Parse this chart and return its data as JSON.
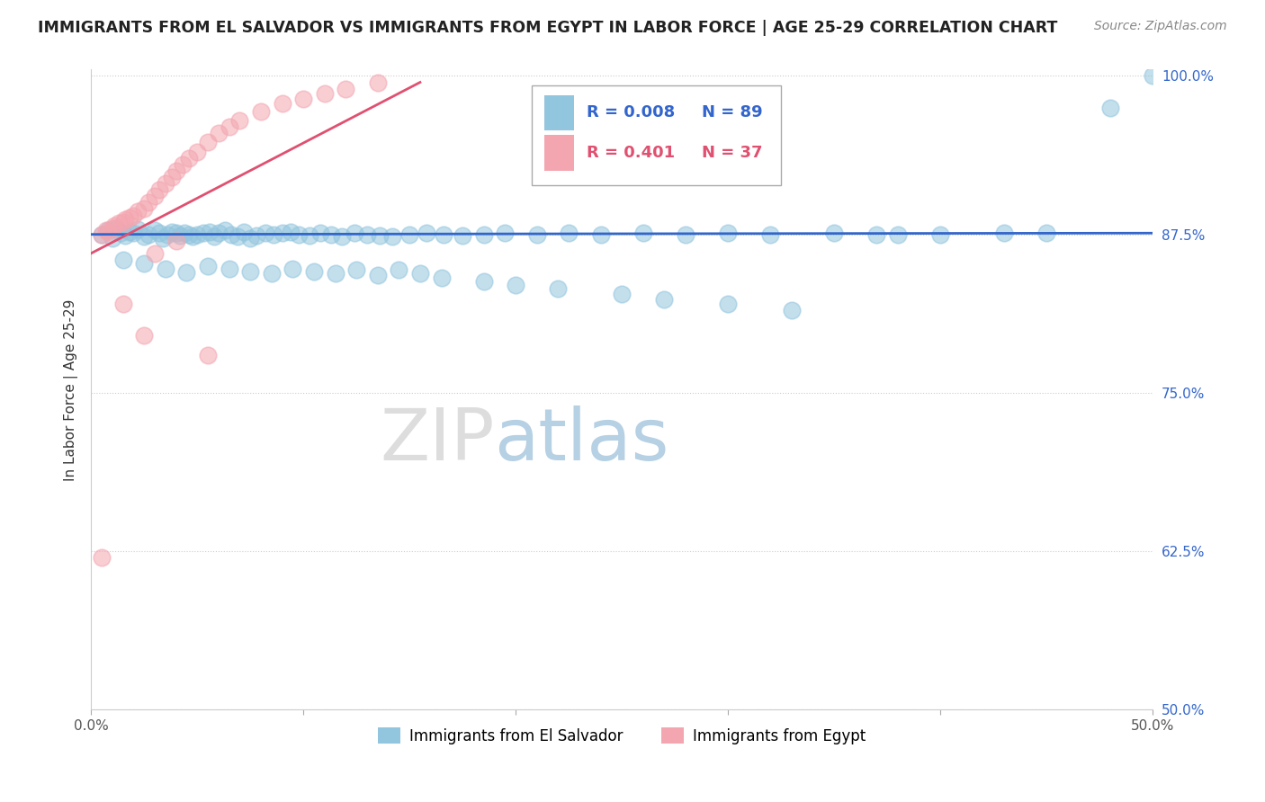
{
  "title": "IMMIGRANTS FROM EL SALVADOR VS IMMIGRANTS FROM EGYPT IN LABOR FORCE | AGE 25-29 CORRELATION CHART",
  "source": "Source: ZipAtlas.com",
  "ylabel": "In Labor Force | Age 25-29",
  "xlim": [
    0.0,
    0.5
  ],
  "ylim": [
    0.5,
    1.005
  ],
  "xticks": [
    0.0,
    0.1,
    0.2,
    0.3,
    0.4,
    0.5
  ],
  "xticklabels": [
    "0.0%",
    "",
    "",
    "",
    "",
    "50.0%"
  ],
  "yticks": [
    0.5,
    0.625,
    0.75,
    0.875,
    1.0
  ],
  "yticklabels": [
    "50.0%",
    "62.5%",
    "75.0%",
    "87.5%",
    "100.0%"
  ],
  "legend_r_blue": "R = 0.008",
  "legend_n_blue": "N = 89",
  "legend_r_pink": "R = 0.401",
  "legend_n_pink": "N = 37",
  "blue_color": "#92C5DE",
  "pink_color": "#F4A6B0",
  "blue_line_color": "#3366CC",
  "pink_line_color": "#E05070",
  "watermark_zip": "ZIP",
  "watermark_atlas": "atlas",
  "blue_scatter_x": [
    0.005,
    0.008,
    0.01,
    0.012,
    0.014,
    0.016,
    0.018,
    0.02,
    0.022,
    0.025,
    0.027,
    0.03,
    0.032,
    0.034,
    0.036,
    0.038,
    0.04,
    0.042,
    0.044,
    0.046,
    0.048,
    0.05,
    0.053,
    0.056,
    0.058,
    0.06,
    0.063,
    0.066,
    0.069,
    0.072,
    0.075,
    0.078,
    0.082,
    0.086,
    0.09,
    0.094,
    0.098,
    0.103,
    0.108,
    0.113,
    0.118,
    0.124,
    0.13,
    0.136,
    0.142,
    0.15,
    0.158,
    0.166,
    0.175,
    0.185,
    0.195,
    0.21,
    0.225,
    0.24,
    0.26,
    0.28,
    0.3,
    0.32,
    0.35,
    0.38,
    0.015,
    0.025,
    0.035,
    0.045,
    0.055,
    0.065,
    0.075,
    0.085,
    0.095,
    0.105,
    0.115,
    0.125,
    0.135,
    0.145,
    0.155,
    0.165,
    0.185,
    0.2,
    0.22,
    0.25,
    0.27,
    0.3,
    0.33,
    0.4,
    0.45,
    0.5,
    0.48,
    0.43,
    0.37
  ],
  "blue_scatter_y": [
    0.875,
    0.878,
    0.872,
    0.88,
    0.876,
    0.874,
    0.877,
    0.876,
    0.879,
    0.873,
    0.875,
    0.878,
    0.876,
    0.872,
    0.875,
    0.877,
    0.876,
    0.874,
    0.876,
    0.875,
    0.873,
    0.875,
    0.876,
    0.877,
    0.873,
    0.876,
    0.878,
    0.875,
    0.873,
    0.877,
    0.872,
    0.874,
    0.876,
    0.875,
    0.876,
    0.877,
    0.875,
    0.874,
    0.876,
    0.875,
    0.873,
    0.876,
    0.875,
    0.874,
    0.873,
    0.875,
    0.876,
    0.875,
    0.874,
    0.875,
    0.876,
    0.875,
    0.876,
    0.875,
    0.876,
    0.875,
    0.876,
    0.875,
    0.876,
    0.875,
    0.855,
    0.852,
    0.848,
    0.845,
    0.85,
    0.848,
    0.846,
    0.844,
    0.848,
    0.846,
    0.844,
    0.847,
    0.843,
    0.847,
    0.844,
    0.841,
    0.838,
    0.835,
    0.832,
    0.828,
    0.824,
    0.82,
    0.815,
    0.875,
    0.876,
    1.0,
    0.975,
    0.876,
    0.875
  ],
  "pink_scatter_x": [
    0.005,
    0.007,
    0.008,
    0.01,
    0.011,
    0.013,
    0.015,
    0.016,
    0.018,
    0.02,
    0.022,
    0.025,
    0.027,
    0.03,
    0.032,
    0.035,
    0.038,
    0.04,
    0.043,
    0.046,
    0.05,
    0.055,
    0.06,
    0.065,
    0.07,
    0.08,
    0.09,
    0.1,
    0.11,
    0.12,
    0.135,
    0.015,
    0.025,
    0.005,
    0.03,
    0.04,
    0.055
  ],
  "pink_scatter_y": [
    0.875,
    0.878,
    0.877,
    0.88,
    0.882,
    0.884,
    0.885,
    0.887,
    0.888,
    0.89,
    0.893,
    0.895,
    0.9,
    0.905,
    0.91,
    0.915,
    0.92,
    0.925,
    0.93,
    0.935,
    0.94,
    0.948,
    0.955,
    0.96,
    0.965,
    0.972,
    0.978,
    0.982,
    0.986,
    0.99,
    0.995,
    0.82,
    0.795,
    0.62,
    0.86,
    0.87,
    0.78
  ],
  "blue_trendline_x": [
    0.0,
    0.5
  ],
  "blue_trendline_y": [
    0.875,
    0.876
  ],
  "pink_trendline_x": [
    0.0,
    0.155
  ],
  "pink_trendline_y": [
    0.86,
    0.995
  ]
}
